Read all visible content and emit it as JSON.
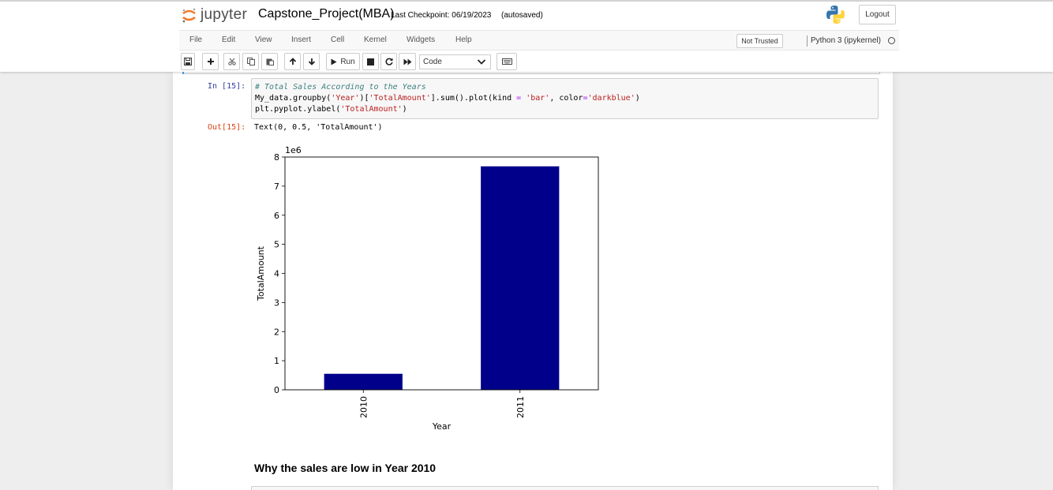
{
  "app": {
    "logo_text": "jupyter",
    "notebook_title": "Capstone_Project(MBA)",
    "checkpoint": "Last Checkpoint: 06/19/2023",
    "autosave": "(autosaved)",
    "logout_label": "Logout"
  },
  "menu": {
    "items": [
      "File",
      "Edit",
      "View",
      "Insert",
      "Cell",
      "Kernel",
      "Widgets",
      "Help"
    ],
    "trust_label": "Not Trusted",
    "kernel_label": "Python 3 (ipykernel)"
  },
  "toolbar": {
    "buttons": [
      "save-icon",
      "plus-icon",
      "cut-icon",
      "copy-icon",
      "paste-icon",
      "arrow-up-icon",
      "arrow-down-icon",
      "run",
      "stop-icon",
      "restart-icon",
      "fast-forward-icon"
    ],
    "run_label": "Run",
    "cell_type": "Code",
    "keyboard_icon": "keyboard-icon"
  },
  "cell": {
    "in_prompt": "In [15]:",
    "out_prompt": "Out[15]:",
    "code_lines": [
      "# Total Sales According to the Years",
      "My_data.groupby('Year')['TotalAmount'].sum().plot(kind = 'bar', color='darkblue')",
      "plt.pyplot.ylabel('TotalAmount')"
    ],
    "output_text": "Text(0, 0.5, 'TotalAmount')"
  },
  "chart_data": {
    "type": "bar",
    "categories": [
      "2010",
      "2011"
    ],
    "values": [
      0.55,
      7.68
    ],
    "scale_label": "1e6",
    "xlabel": "Year",
    "ylabel": "TotalAmount",
    "ylim": [
      0,
      8
    ],
    "yticks": [
      0,
      1,
      2,
      3,
      4,
      5,
      6,
      7,
      8
    ],
    "bar_color": "#00008b",
    "grid": false,
    "legend": "none"
  },
  "markdown": {
    "heading": "Why the sales are low in Year 2010"
  }
}
